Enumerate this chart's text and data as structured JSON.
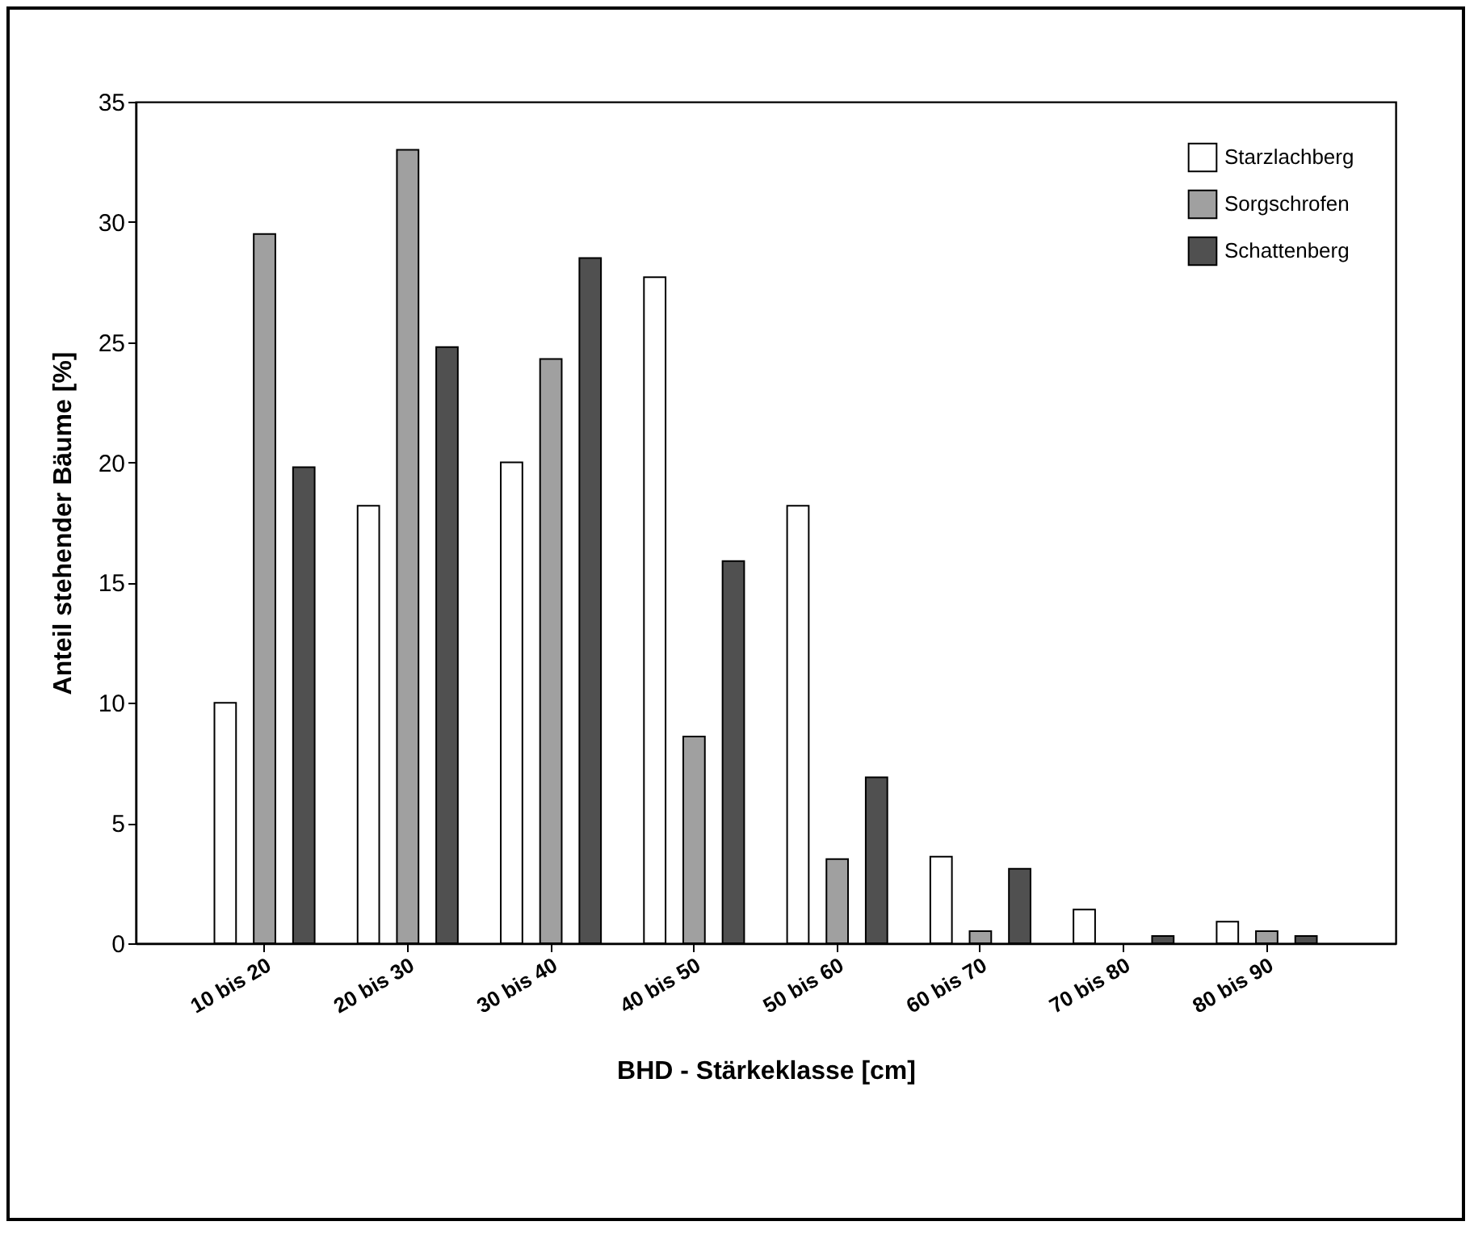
{
  "chart_data": {
    "type": "bar",
    "xlabel": "BHD - Stärkeklasse [cm]",
    "ylabel": "Anteil stehender Bäume [%]",
    "categories": [
      "10 bis 20",
      "20 bis 30",
      "30 bis 40",
      "40 bis 50",
      "50 bis 60",
      "60 bis 70",
      "70 bis 80",
      "80 bis 90"
    ],
    "series": [
      {
        "name": "Starzlachberg",
        "color": "#ffffff",
        "values": [
          10,
          18.2,
          20,
          27.7,
          18.2,
          3.6,
          1.4,
          0.9
        ]
      },
      {
        "name": "Sorgschrofen",
        "color": "#a0a0a0",
        "values": [
          29.5,
          33,
          24.3,
          8.6,
          3.5,
          0.5,
          null,
          0.5
        ]
      },
      {
        "name": "Schattenberg",
        "color": "#505050",
        "values": [
          19.8,
          24.8,
          28.5,
          15.9,
          6.9,
          3.1,
          0.3,
          0.3
        ]
      }
    ],
    "ylim": [
      0,
      35
    ],
    "yticks": [
      0,
      5,
      10,
      15,
      20,
      25,
      30,
      35
    ],
    "grid": false,
    "legend": "top right"
  }
}
